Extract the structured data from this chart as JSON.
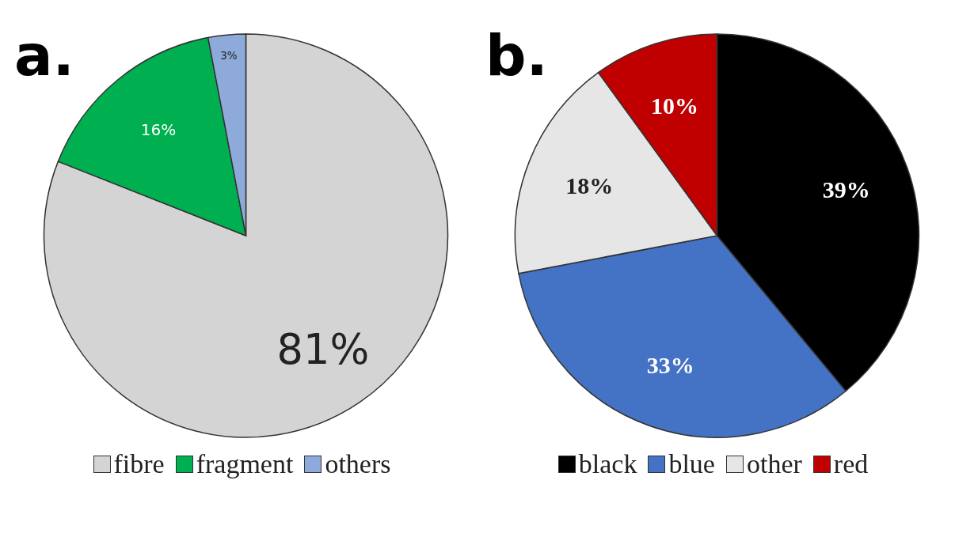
{
  "chart_data": [
    {
      "type": "pie",
      "title": "a.",
      "categories": [
        "fibre",
        "fragment",
        "others"
      ],
      "values": [
        81,
        16,
        3
      ],
      "colors": [
        "#d4d4d4",
        "#00b050",
        "#8eaadb"
      ],
      "value_labels": [
        "81%",
        "16%",
        "3%"
      ],
      "legend": "bottom"
    },
    {
      "type": "pie",
      "title": "b.",
      "categories": [
        "black",
        "blue",
        "other",
        "red"
      ],
      "values": [
        39,
        33,
        18,
        10
      ],
      "colors": [
        "#000000",
        "#4472c4",
        "#e7e6e6",
        "#c00000"
      ],
      "value_labels": [
        "39%",
        "33%",
        "18%",
        "10%"
      ],
      "legend": "bottom"
    }
  ]
}
